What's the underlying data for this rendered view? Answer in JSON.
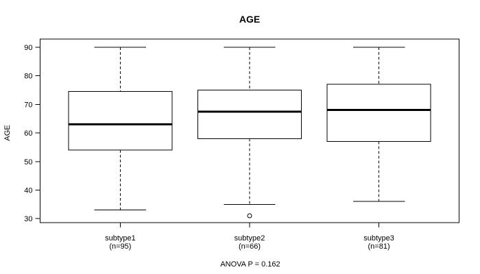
{
  "title": "AGE",
  "chart_data": {
    "type": "boxplot",
    "title": "AGE",
    "ylabel": "AGE",
    "xlabel": "",
    "ylim": [
      28.5,
      92.5
    ],
    "yticks": [
      30,
      40,
      50,
      60,
      70,
      80,
      90
    ],
    "grid": false,
    "legend": false,
    "annotation": "ANOVA P = 0.162",
    "groups": [
      {
        "label": "subtype1",
        "n_label": "(n=95)",
        "n": 95,
        "whisker_low": 33,
        "q1": 54,
        "median": 63,
        "q3": 74.5,
        "whisker_high": 90,
        "outliers": []
      },
      {
        "label": "subtype2",
        "n_label": "(n=66)",
        "n": 66,
        "whisker_low": 35,
        "q1": 58,
        "median": 67.5,
        "q3": 75,
        "whisker_high": 90,
        "outliers": [
          31
        ]
      },
      {
        "label": "subtype3",
        "n_label": "(n=81)",
        "n": 81,
        "whisker_low": 36,
        "q1": 57,
        "median": 68,
        "q3": 77,
        "whisker_high": 90,
        "outliers": []
      }
    ]
  },
  "colors": {
    "line": "#000000",
    "background": "#ffffff"
  }
}
